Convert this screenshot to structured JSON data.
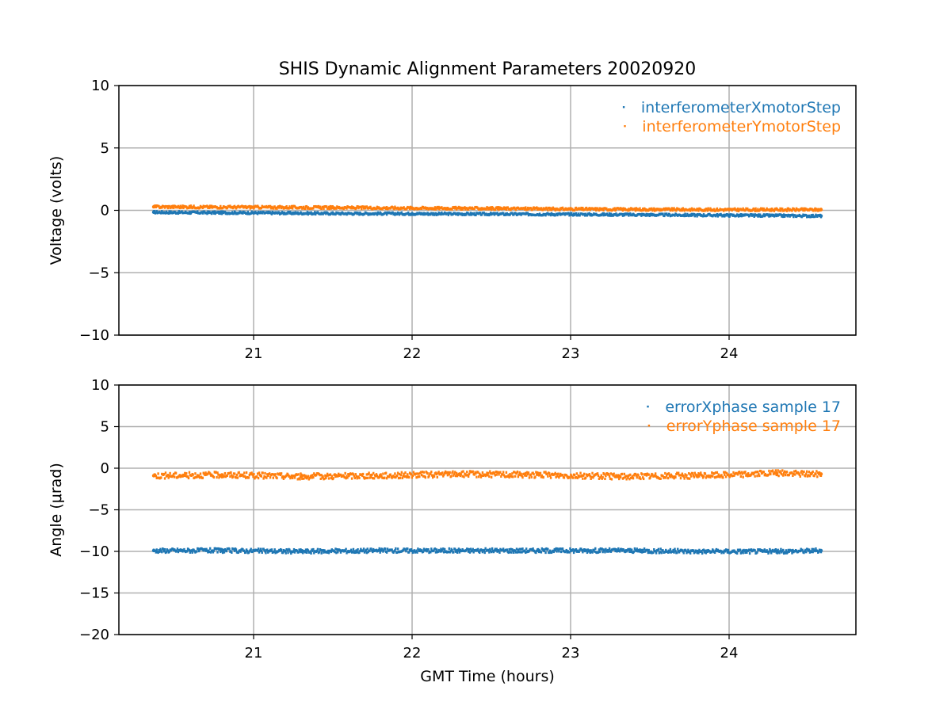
{
  "title": "SHIS Dynamic Alignment Parameters 20020920",
  "chart_data": [
    {
      "type": "scatter",
      "ylabel": "Voltage (volts)",
      "xlabel": "",
      "xlim": [
        20.15,
        24.8
      ],
      "ylim": [
        -10,
        10
      ],
      "xticks": [
        21,
        22,
        23,
        24
      ],
      "xtick_labels": [
        "21",
        "22",
        "23",
        "24"
      ],
      "yticks": [
        10,
        5,
        0,
        -5,
        -10
      ],
      "ytick_labels": [
        "10",
        "5",
        "0",
        "−5",
        "−10"
      ],
      "grid": true,
      "legend_position": "top-right",
      "series": [
        {
          "name": "interferometerXmotorStep",
          "color": "#1f77b4",
          "x": [
            20.37,
            20.6,
            21.0,
            21.5,
            22.0,
            22.5,
            23.0,
            23.5,
            24.0,
            24.58
          ],
          "y": [
            -0.15,
            -0.18,
            -0.2,
            -0.25,
            -0.27,
            -0.3,
            -0.32,
            -0.36,
            -0.4,
            -0.45
          ],
          "spread": 0.18
        },
        {
          "name": "interferometerYmotorStep",
          "color": "#ff7f0e",
          "x": [
            20.37,
            20.6,
            21.0,
            21.5,
            22.0,
            22.5,
            23.0,
            23.5,
            24.0,
            24.58
          ],
          "y": [
            0.28,
            0.27,
            0.25,
            0.22,
            0.18,
            0.15,
            0.1,
            0.07,
            0.05,
            0.05
          ],
          "spread": 0.2
        }
      ]
    },
    {
      "type": "scatter",
      "ylabel": "Angle (μrad)",
      "xlabel": "GMT Time (hours)",
      "xlim": [
        20.15,
        24.8
      ],
      "ylim": [
        -20,
        10
      ],
      "xticks": [
        21,
        22,
        23,
        24
      ],
      "xtick_labels": [
        "21",
        "22",
        "23",
        "24"
      ],
      "yticks": [
        10,
        5,
        0,
        -5,
        -10,
        -15,
        -20
      ],
      "ytick_labels": [
        "10",
        "5",
        "0",
        "−5",
        "−10",
        "−15",
        "−20"
      ],
      "grid": true,
      "legend_position": "top-right",
      "series": [
        {
          "name": "errorXphase sample 17",
          "color": "#1f77b4",
          "x": [
            20.37,
            20.8,
            21.3,
            21.8,
            22.3,
            22.8,
            23.3,
            23.8,
            24.3,
            24.58
          ],
          "y": [
            -9.9,
            -9.9,
            -10.0,
            -9.9,
            -9.9,
            -9.9,
            -9.9,
            -10.0,
            -10.0,
            -9.9
          ],
          "spread": 0.5
        },
        {
          "name": "errorYphase sample 17",
          "color": "#ff7f0e",
          "x": [
            20.37,
            20.8,
            21.3,
            21.8,
            22.3,
            22.8,
            23.3,
            23.8,
            24.3,
            24.58
          ],
          "y": [
            -0.9,
            -0.8,
            -1.0,
            -0.9,
            -0.7,
            -0.8,
            -1.0,
            -0.9,
            -0.6,
            -0.7
          ],
          "spread": 0.7
        }
      ]
    }
  ]
}
